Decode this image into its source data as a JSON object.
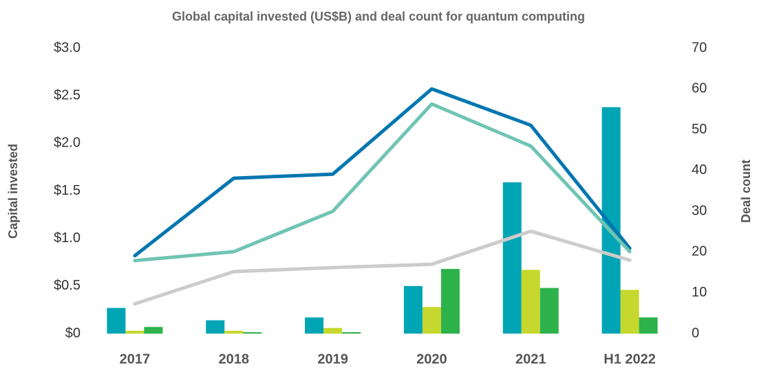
{
  "chart_data": {
    "type": "bar",
    "title": "Global capital invested (US$B) and deal count for quantum computing",
    "y_label": "Capital invested",
    "y2_label": "Deal count",
    "categories": [
      "2017",
      "2018",
      "2019",
      "2020",
      "2021",
      "H1 2022"
    ],
    "series": [
      {
        "type": "bar",
        "color": "#00a5b5",
        "values": [
          0.27,
          0.14,
          0.17,
          0.5,
          1.59,
          2.38
        ]
      },
      {
        "type": "bar",
        "color": "#c6d82e",
        "values": [
          0.03,
          0.03,
          0.06,
          0.28,
          0.67,
          0.46
        ]
      },
      {
        "type": "bar",
        "color": "#2eb24b",
        "values": [
          0.07,
          0.015,
          0.015,
          0.68,
          0.48,
          0.17
        ]
      },
      {
        "type": "line",
        "axis": "y2",
        "color": "#0076b0",
        "values": [
          19.1,
          38.1,
          39.1,
          60,
          51.1,
          20.9
        ]
      },
      {
        "type": "line",
        "axis": "y2",
        "color": "#70c4b3",
        "values": [
          17.9,
          20.1,
          30,
          56.3,
          46,
          20.1
        ]
      },
      {
        "type": "line",
        "axis": "y2",
        "color": "#cccccc",
        "values": [
          7.3,
          15.2,
          16.2,
          17,
          25.1,
          18
        ]
      }
    ],
    "ylim": [
      0,
      3
    ],
    "yticks": [
      {
        "value": 0,
        "label": "$0"
      },
      {
        "value": 0.5,
        "label": "$0.5"
      },
      {
        "value": 1,
        "label": "$1.0"
      },
      {
        "value": 1.5,
        "label": "$1.5"
      },
      {
        "value": 2,
        "label": "$2.0"
      },
      {
        "value": 2.5,
        "label": "$2.5"
      },
      {
        "value": 3,
        "label": "$3.0"
      }
    ],
    "y2lim": [
      0,
      70
    ],
    "y2ticks": [
      0,
      10,
      20,
      30,
      40,
      50,
      60,
      70
    ],
    "grid": false
  }
}
